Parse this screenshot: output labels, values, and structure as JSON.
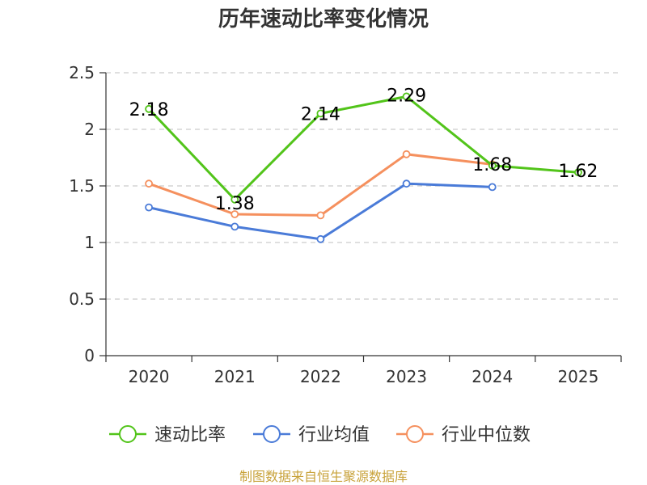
{
  "chart_data": {
    "type": "line",
    "title": "历年速动比率变化情况",
    "categories": [
      "2020",
      "2021",
      "2022",
      "2023",
      "2024",
      "2025"
    ],
    "ylim": [
      0,
      2.5
    ],
    "yticks": [
      "0",
      "0.5",
      "1",
      "1.5",
      "2",
      "2.5"
    ],
    "ytick_values": [
      0,
      0.5,
      1,
      1.5,
      2,
      2.5
    ],
    "grid": true,
    "legend_position": "bottom",
    "series": [
      {
        "name": "速动比率",
        "color": "#52c41a",
        "values": [
          2.18,
          1.38,
          2.14,
          2.29,
          1.68,
          1.62
        ],
        "labels": [
          "2.18",
          "1.38",
          "2.14",
          "2.29",
          "1.68",
          "1.62"
        ]
      },
      {
        "name": "行业均值",
        "color": "#4a7bd8",
        "values": [
          1.31,
          1.14,
          1.03,
          1.52,
          1.49,
          null
        ]
      },
      {
        "name": "行业中位数",
        "color": "#f5905e",
        "values": [
          1.52,
          1.25,
          1.24,
          1.78,
          1.69,
          null
        ]
      }
    ]
  },
  "source": "制图数据来自恒生聚源数据库"
}
